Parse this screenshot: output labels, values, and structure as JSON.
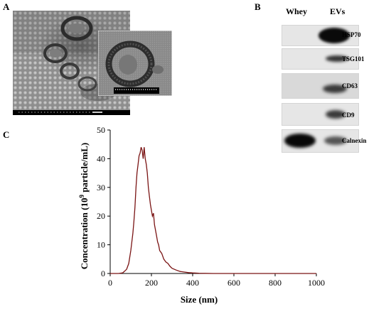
{
  "panels": {
    "a_letter": "A",
    "b_letter": "B",
    "c_letter": "C"
  },
  "blot": {
    "columns": [
      "Whey",
      "EVs"
    ],
    "rows": [
      {
        "label": "HSP70"
      },
      {
        "label": "TSG101"
      },
      {
        "label": "CD63"
      },
      {
        "label": "CD9"
      },
      {
        "label": "Calnexin"
      }
    ]
  },
  "colors": {
    "curve": "#7a1414",
    "band": "#0a0a0a",
    "blot_bg": "#e6e6e6"
  },
  "chart_data": {
    "type": "line",
    "xlabel": "Size (nm)",
    "ylabel_main": "Concentration  (10",
    "ylabel_sup": "9",
    "ylabel_tail": " particle/mL)",
    "xlim": [
      0,
      1000
    ],
    "ylim": [
      0,
      50
    ],
    "xticks": [
      0,
      200,
      400,
      600,
      800,
      1000
    ],
    "yticks": [
      0,
      10,
      20,
      30,
      40,
      50
    ],
    "series": [
      {
        "x": [
          0,
          40,
          60,
          70,
          80,
          90,
          100,
          110,
          115,
          120,
          125,
          130,
          135,
          140,
          145,
          150,
          155,
          160,
          165,
          170,
          175,
          180,
          185,
          190,
          195,
          200,
          205,
          210,
          215,
          220,
          225,
          230,
          235,
          240,
          250,
          260,
          270,
          280,
          290,
          300,
          320,
          340,
          360,
          380,
          400,
          430,
          460,
          500,
          600,
          700,
          800,
          900,
          1000
        ],
        "y": [
          0,
          0,
          0.2,
          0.8,
          1.5,
          3.5,
          8,
          14,
          18,
          23,
          30,
          35,
          38,
          41,
          42,
          44,
          43,
          40,
          44,
          40,
          38,
          35,
          30,
          27,
          24,
          22,
          20,
          21,
          17,
          15,
          13,
          11,
          10,
          8,
          7,
          5,
          4,
          3.5,
          2.5,
          1.8,
          1.2,
          0.7,
          0.5,
          0.3,
          0.2,
          0.1,
          0.05,
          0,
          0,
          0,
          0,
          0,
          0
        ]
      }
    ]
  }
}
